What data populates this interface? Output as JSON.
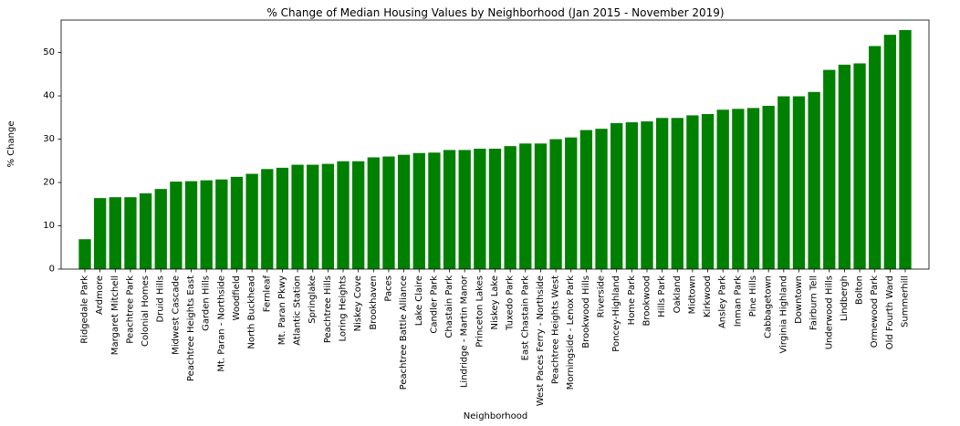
{
  "chart_data": {
    "type": "bar",
    "title": "% Change of Median Housing Values by Neighborhood (Jan 2015 - November 2019)",
    "xlabel": "Neighborhood",
    "ylabel": "% Change",
    "ylim": [
      0,
      57.5
    ],
    "yticks": [
      0,
      10,
      20,
      30,
      40,
      50
    ],
    "bar_color": "#008000",
    "grid": false,
    "categories": [
      "Ridgedale Park",
      "Ardmore",
      "Margaret Mitchell",
      "Peachtree Park",
      "Colonial Homes",
      "Druid Hills",
      "Midwest Cascade",
      "Peachtree Heights East",
      "Garden Hills",
      "Mt. Paran - Northside",
      "Woodfield",
      "North Buckhead",
      "Fernleaf",
      "Mt. Paran Pkwy",
      "Atlantic Station",
      "Springlake",
      "Peachtree Hills",
      "Loring Heights",
      "Niskey Cove",
      "Brookhaven",
      "Paces",
      "Peachtree Battle Alliance",
      "Lake Claire",
      "Candler Park",
      "Chastain Park",
      "Lindridge - Martin Manor",
      "Princeton Lakes",
      "Niskey Lake",
      "Tuxedo Park",
      "East Chastain Park",
      "West Paces Ferry - Northside",
      "Peachtree Heights West",
      "Morningside - Lenox Park",
      "Brookwood Hills",
      "Riverside",
      "Poncey-Highland",
      "Home Park",
      "Brookwood",
      "Hills Park",
      "Oakland",
      "Midtown",
      "Kirkwood",
      "Ansley Park",
      "Inman Park",
      "Pine Hills",
      "Cabbagetown",
      "Virginia Highland",
      "Downtown",
      "Fairburn Tell",
      "Underwood Hills",
      "Lindbergh",
      "Bolton",
      "Ormewood Park",
      "Old Fourth Ward",
      "Summerhill"
    ],
    "values": [
      6.9,
      16.4,
      16.6,
      16.6,
      17.5,
      18.5,
      20.2,
      20.3,
      20.5,
      20.7,
      21.3,
      22.0,
      23.1,
      23.4,
      24.1,
      24.1,
      24.3,
      24.9,
      24.9,
      25.8,
      26.0,
      26.4,
      26.8,
      26.9,
      27.5,
      27.5,
      27.8,
      27.8,
      28.4,
      29.0,
      29.0,
      30.0,
      30.4,
      32.1,
      32.4,
      33.7,
      33.9,
      34.1,
      34.9,
      34.9,
      35.5,
      35.8,
      36.8,
      37.0,
      37.2,
      37.7,
      39.9,
      39.9,
      40.9,
      46.0,
      47.2,
      47.5,
      51.5,
      54.1,
      55.2
    ]
  }
}
